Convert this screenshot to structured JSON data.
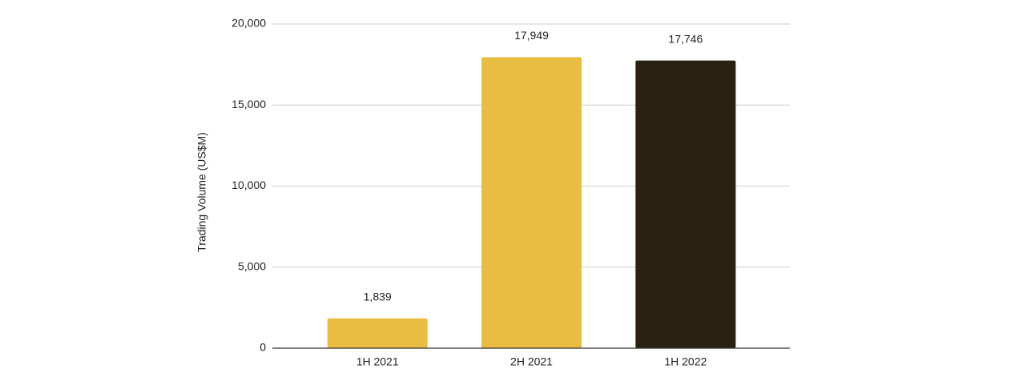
{
  "chart_data": {
    "type": "bar",
    "y_label": "Trading Volume (US$M)",
    "categories": [
      "1H 2021",
      "2H 2021",
      "1H 2022"
    ],
    "values": [
      1839,
      17949,
      17746
    ],
    "value_labels": [
      "1,839",
      "17,949",
      "17,746"
    ],
    "colors": [
      "#e8bd42",
      "#e8bd42",
      "#2a2110"
    ],
    "ylim": [
      0,
      20000
    ],
    "yticks": [
      0,
      {
        "value": 5000,
        "label": "5,000"
      },
      {
        "value": 10000,
        "label": "10,000"
      },
      {
        "value": 15000,
        "label": "15,000"
      },
      {
        "value": 20000,
        "label": "20,000"
      }
    ],
    "grid": true
  }
}
